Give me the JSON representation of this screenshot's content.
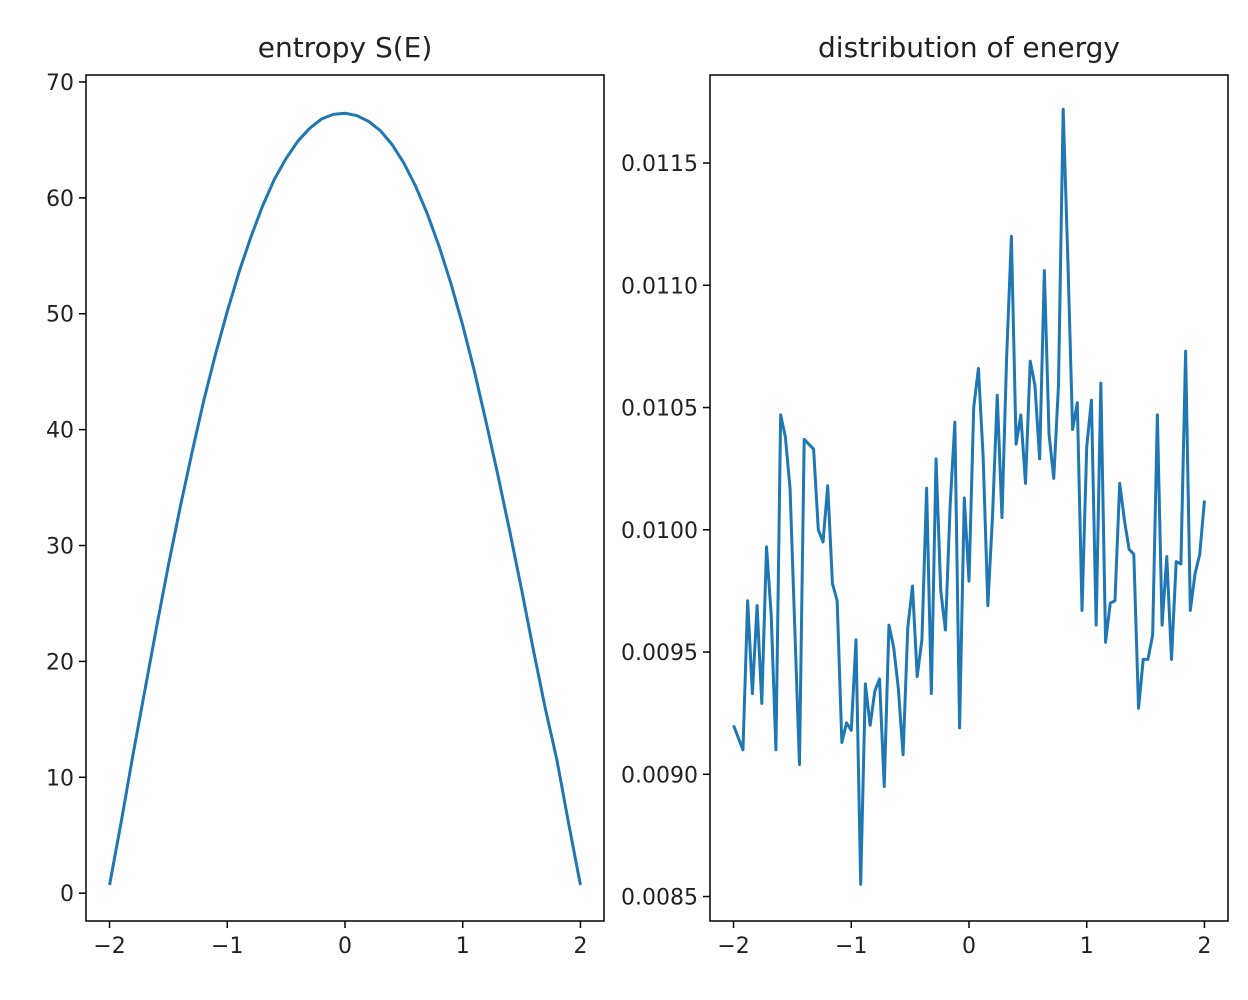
{
  "chart_data": [
    {
      "type": "line",
      "title": "entropy S(E)",
      "color": "#1f77b4",
      "x": [
        -2,
        -1.9,
        -1.8,
        -1.7,
        -1.6,
        -1.5,
        -1.4,
        -1.3,
        -1.2,
        -1.1,
        -1,
        -0.9,
        -0.8,
        -0.7,
        -0.6,
        -0.5,
        -0.4,
        -0.3,
        -0.2,
        -0.1,
        0,
        0.1,
        0.2,
        0.3,
        0.4,
        0.5,
        0.6,
        0.7,
        0.8,
        0.9,
        1,
        1.1,
        1.2,
        1.3,
        1.4,
        1.5,
        1.6,
        1.7,
        1.8,
        1.9,
        2
      ],
      "values": [
        0.7,
        6.2,
        12,
        17.5,
        23,
        28.3,
        33.3,
        38,
        42.5,
        46.5,
        50.2,
        53.6,
        56.6,
        59.3,
        61.6,
        63.4,
        64.9,
        66,
        66.8,
        67.2,
        67.3,
        67.1,
        66.6,
        65.8,
        64.6,
        63,
        61,
        58.6,
        55.8,
        52.6,
        49,
        45,
        40.6,
        36,
        31.2,
        26.2,
        21,
        16,
        11.5,
        6,
        0.7
      ],
      "xlim": [
        -2.2,
        2.2
      ],
      "ylim": [
        -2.4,
        70.6
      ],
      "xticks": [
        {
          "value": -2,
          "label": "−2"
        },
        {
          "value": -1,
          "label": "−1"
        },
        0,
        1,
        2
      ],
      "yticks": [
        0,
        10,
        20,
        30,
        40,
        50,
        60,
        70
      ]
    },
    {
      "type": "line",
      "title": "distribution of energy",
      "color": "#1f77b4",
      "x": [
        -2,
        -1.96,
        -1.92,
        -1.88,
        -1.84,
        -1.8,
        -1.76,
        -1.72,
        -1.68,
        -1.64,
        -1.6,
        -1.56,
        -1.52,
        -1.48,
        -1.44,
        -1.4,
        -1.36,
        -1.32,
        -1.28,
        -1.24,
        -1.2,
        -1.16,
        -1.12,
        -1.08,
        -1.04,
        -1,
        -0.96,
        -0.92,
        -0.88,
        -0.84,
        -0.8,
        -0.76,
        -0.72,
        -0.68,
        -0.64,
        -0.6,
        -0.56,
        -0.52,
        -0.48,
        -0.44,
        -0.4,
        -0.36,
        -0.32,
        -0.28,
        -0.24,
        -0.2,
        -0.16,
        -0.12,
        -0.08,
        -0.04,
        0,
        0.04,
        0.08,
        0.12,
        0.16,
        0.2,
        0.24,
        0.28,
        0.32,
        0.36,
        0.4,
        0.44,
        0.48,
        0.52,
        0.56,
        0.6,
        0.64,
        0.68,
        0.72,
        0.76,
        0.8,
        0.84,
        0.88,
        0.92,
        0.96,
        1,
        1.04,
        1.08,
        1.12,
        1.16,
        1.2,
        1.24,
        1.28,
        1.32,
        1.36,
        1.4,
        1.44,
        1.48,
        1.52,
        1.56,
        1.6,
        1.64,
        1.68,
        1.72,
        1.76,
        1.8,
        1.84,
        1.88,
        1.92,
        1.96,
        2
      ],
      "values": [
        0.0092,
        0.00915,
        0.0091,
        0.00971,
        0.00933,
        0.00969,
        0.00929,
        0.00993,
        0.00965,
        0.0091,
        0.01047,
        0.01038,
        0.01017,
        0.0096,
        0.00904,
        0.01037,
        0.01035,
        0.01033,
        0.01,
        0.00995,
        0.01018,
        0.00978,
        0.00971,
        0.00913,
        0.00921,
        0.00918,
        0.00955,
        0.00855,
        0.00937,
        0.0092,
        0.00934,
        0.00939,
        0.00895,
        0.00961,
        0.00952,
        0.00935,
        0.00908,
        0.0096,
        0.00977,
        0.0094,
        0.00955,
        0.01017,
        0.00933,
        0.01029,
        0.00975,
        0.00959,
        0.0101,
        0.01044,
        0.00919,
        0.01013,
        0.00979,
        0.0105,
        0.01066,
        0.0103,
        0.00969,
        0.01006,
        0.01055,
        0.01005,
        0.01071,
        0.0112,
        0.01035,
        0.01047,
        0.01019,
        0.01069,
        0.01059,
        0.01029,
        0.01106,
        0.01039,
        0.01021,
        0.01059,
        0.01172,
        0.0111,
        0.01041,
        0.01052,
        0.00967,
        0.01034,
        0.01053,
        0.00961,
        0.0106,
        0.00954,
        0.0097,
        0.00971,
        0.01019,
        0.01004,
        0.00992,
        0.0099,
        0.00927,
        0.00947,
        0.00947,
        0.00957,
        0.01047,
        0.00961,
        0.00989,
        0.00947,
        0.00987,
        0.00986,
        0.01073,
        0.00967,
        0.00982,
        0.0099,
        0.01012
      ],
      "xlim": [
        -2.2,
        2.2
      ],
      "ylim": [
        0.0084,
        0.01186
      ],
      "xticks": [
        {
          "value": -2,
          "label": "−2"
        },
        {
          "value": -1,
          "label": "−1"
        },
        0,
        1,
        2
      ],
      "yticks": [
        0.0085,
        {
          "value": 0.009,
          "label": "0.0090"
        },
        0.0095,
        {
          "value": 0.01,
          "label": "0.0100"
        },
        0.0105,
        {
          "value": 0.011,
          "label": "0.0110"
        },
        0.0115
      ]
    }
  ]
}
